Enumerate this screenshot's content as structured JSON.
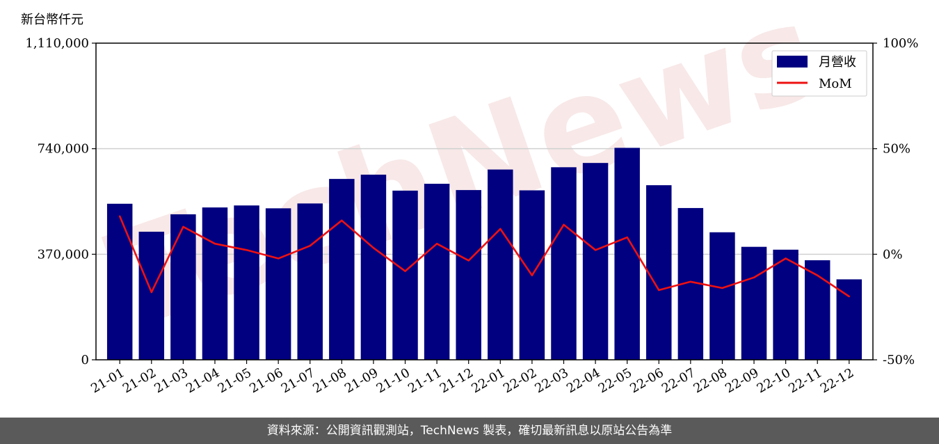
{
  "chart_data": {
    "type": "bar",
    "unit_label": "新台幣仟元",
    "categories": [
      "21-01",
      "21-02",
      "21-03",
      "21-04",
      "21-05",
      "21-06",
      "21-07",
      "21-08",
      "21-09",
      "21-10",
      "21-11",
      "21-12",
      "22-01",
      "22-02",
      "22-03",
      "22-04",
      "22-05",
      "22-06",
      "22-07",
      "22-08",
      "22-09",
      "22-10",
      "22-11",
      "22-12"
    ],
    "series": [
      {
        "name": "月營收",
        "type": "bar",
        "axis": "left",
        "color": "#000080",
        "values": [
          547000,
          449000,
          510000,
          534000,
          541000,
          531000,
          548000,
          634000,
          649000,
          593000,
          617000,
          595000,
          667000,
          594000,
          675000,
          690000,
          743000,
          612000,
          532000,
          447000,
          396000,
          386000,
          349000,
          282000
        ]
      },
      {
        "name": "MoM",
        "type": "line",
        "axis": "right",
        "color": "#ee1111",
        "values": [
          18,
          -18,
          13,
          5,
          2,
          -2,
          4,
          16,
          3,
          -8,
          5,
          -3,
          12,
          -10,
          14,
          2,
          8,
          -17,
          -13,
          -16,
          -11,
          -2,
          -10,
          -20
        ]
      }
    ],
    "yleft": {
      "ticks": [
        "0",
        "370,000",
        "740,000",
        "1,110,000"
      ],
      "min": 0,
      "max": 1110000
    },
    "yright": {
      "ticks": [
        "-50%",
        "0%",
        "50%",
        "100%"
      ],
      "min": -50,
      "max": 100
    },
    "grid": "horizontal",
    "legend": "top-right"
  },
  "watermark": "TechNews",
  "footer": "資料來源：公開資訊觀測站，TechNews 製表，確切最新訊息以原站公告為準"
}
